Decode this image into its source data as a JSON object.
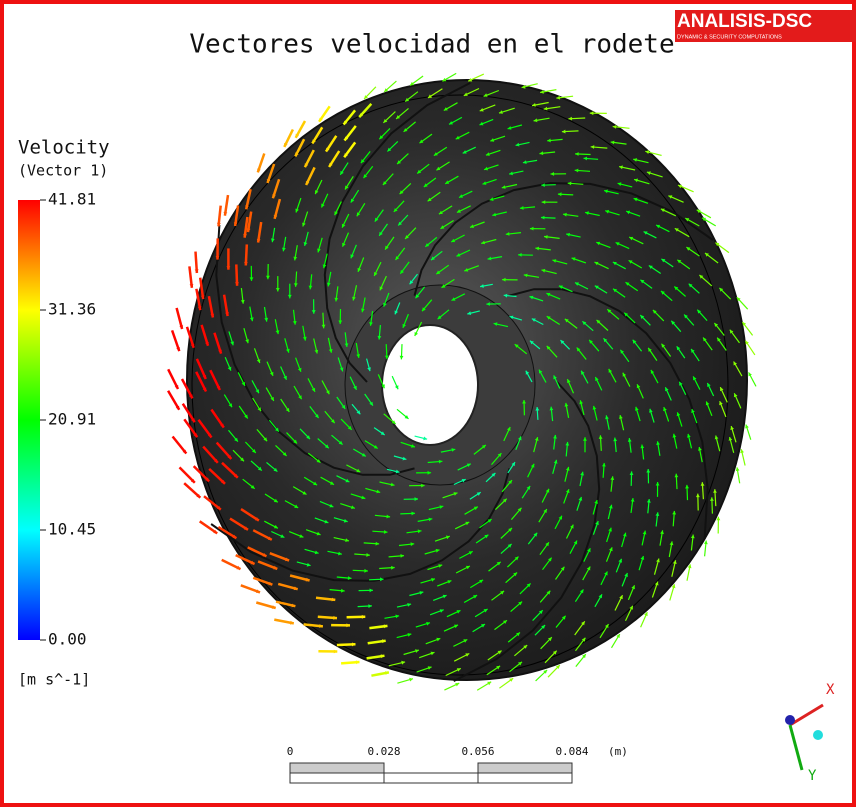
{
  "header": {
    "title": "Vectores velocidad en el rodete"
  },
  "logo": {
    "name": "ANALISIS-DSC",
    "tagline": "DYNAMIC & SECURITY COMPUTATIONS"
  },
  "legend": {
    "title": "Velocity",
    "subtitle": "(Vector 1)",
    "ticks": [
      "41.81",
      "31.36",
      "20.91",
      "10.45",
      "0.00"
    ],
    "unit": "[m s^-1]"
  },
  "scale_bar": {
    "labels": [
      "0",
      "0.028",
      "0.056",
      "0.084"
    ],
    "unit": "(m)"
  },
  "axes": {
    "x": "X",
    "y": "Y"
  }
}
